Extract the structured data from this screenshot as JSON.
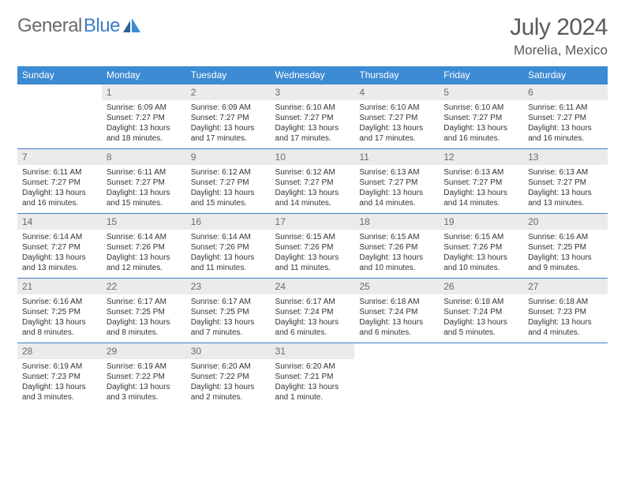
{
  "brand": {
    "part1": "General",
    "part2": "Blue"
  },
  "title": "July 2024",
  "location": "Morelia, Mexico",
  "colors": {
    "header_bg": "#3d8bd4",
    "header_text": "#ffffff",
    "rule": "#3d7cc9",
    "daynum_bg": "#ebebeb",
    "daynum_text": "#6b6b6b",
    "logo_gray": "#6b6b6b",
    "logo_blue": "#3d7cc9",
    "title_color": "#5a5a5a",
    "body_text": "#333333",
    "page_bg": "#ffffff"
  },
  "typography": {
    "title_fontsize": 30,
    "location_fontsize": 17,
    "logo_fontsize": 24,
    "dow_fontsize": 12,
    "daynum_fontsize": 12,
    "body_fontsize": 10
  },
  "days_of_week": [
    "Sunday",
    "Monday",
    "Tuesday",
    "Wednesday",
    "Thursday",
    "Friday",
    "Saturday"
  ],
  "weeks": [
    [
      {
        "num": "",
        "sunrise": "",
        "sunset": "",
        "daylight1": "",
        "daylight2": "",
        "empty": true
      },
      {
        "num": "1",
        "sunrise": "Sunrise: 6:09 AM",
        "sunset": "Sunset: 7:27 PM",
        "daylight1": "Daylight: 13 hours",
        "daylight2": "and 18 minutes."
      },
      {
        "num": "2",
        "sunrise": "Sunrise: 6:09 AM",
        "sunset": "Sunset: 7:27 PM",
        "daylight1": "Daylight: 13 hours",
        "daylight2": "and 17 minutes."
      },
      {
        "num": "3",
        "sunrise": "Sunrise: 6:10 AM",
        "sunset": "Sunset: 7:27 PM",
        "daylight1": "Daylight: 13 hours",
        "daylight2": "and 17 minutes."
      },
      {
        "num": "4",
        "sunrise": "Sunrise: 6:10 AM",
        "sunset": "Sunset: 7:27 PM",
        "daylight1": "Daylight: 13 hours",
        "daylight2": "and 17 minutes."
      },
      {
        "num": "5",
        "sunrise": "Sunrise: 6:10 AM",
        "sunset": "Sunset: 7:27 PM",
        "daylight1": "Daylight: 13 hours",
        "daylight2": "and 16 minutes."
      },
      {
        "num": "6",
        "sunrise": "Sunrise: 6:11 AM",
        "sunset": "Sunset: 7:27 PM",
        "daylight1": "Daylight: 13 hours",
        "daylight2": "and 16 minutes."
      }
    ],
    [
      {
        "num": "7",
        "sunrise": "Sunrise: 6:11 AM",
        "sunset": "Sunset: 7:27 PM",
        "daylight1": "Daylight: 13 hours",
        "daylight2": "and 16 minutes."
      },
      {
        "num": "8",
        "sunrise": "Sunrise: 6:11 AM",
        "sunset": "Sunset: 7:27 PM",
        "daylight1": "Daylight: 13 hours",
        "daylight2": "and 15 minutes."
      },
      {
        "num": "9",
        "sunrise": "Sunrise: 6:12 AM",
        "sunset": "Sunset: 7:27 PM",
        "daylight1": "Daylight: 13 hours",
        "daylight2": "and 15 minutes."
      },
      {
        "num": "10",
        "sunrise": "Sunrise: 6:12 AM",
        "sunset": "Sunset: 7:27 PM",
        "daylight1": "Daylight: 13 hours",
        "daylight2": "and 14 minutes."
      },
      {
        "num": "11",
        "sunrise": "Sunrise: 6:13 AM",
        "sunset": "Sunset: 7:27 PM",
        "daylight1": "Daylight: 13 hours",
        "daylight2": "and 14 minutes."
      },
      {
        "num": "12",
        "sunrise": "Sunrise: 6:13 AM",
        "sunset": "Sunset: 7:27 PM",
        "daylight1": "Daylight: 13 hours",
        "daylight2": "and 14 minutes."
      },
      {
        "num": "13",
        "sunrise": "Sunrise: 6:13 AM",
        "sunset": "Sunset: 7:27 PM",
        "daylight1": "Daylight: 13 hours",
        "daylight2": "and 13 minutes."
      }
    ],
    [
      {
        "num": "14",
        "sunrise": "Sunrise: 6:14 AM",
        "sunset": "Sunset: 7:27 PM",
        "daylight1": "Daylight: 13 hours",
        "daylight2": "and 13 minutes."
      },
      {
        "num": "15",
        "sunrise": "Sunrise: 6:14 AM",
        "sunset": "Sunset: 7:26 PM",
        "daylight1": "Daylight: 13 hours",
        "daylight2": "and 12 minutes."
      },
      {
        "num": "16",
        "sunrise": "Sunrise: 6:14 AM",
        "sunset": "Sunset: 7:26 PM",
        "daylight1": "Daylight: 13 hours",
        "daylight2": "and 11 minutes."
      },
      {
        "num": "17",
        "sunrise": "Sunrise: 6:15 AM",
        "sunset": "Sunset: 7:26 PM",
        "daylight1": "Daylight: 13 hours",
        "daylight2": "and 11 minutes."
      },
      {
        "num": "18",
        "sunrise": "Sunrise: 6:15 AM",
        "sunset": "Sunset: 7:26 PM",
        "daylight1": "Daylight: 13 hours",
        "daylight2": "and 10 minutes."
      },
      {
        "num": "19",
        "sunrise": "Sunrise: 6:15 AM",
        "sunset": "Sunset: 7:26 PM",
        "daylight1": "Daylight: 13 hours",
        "daylight2": "and 10 minutes."
      },
      {
        "num": "20",
        "sunrise": "Sunrise: 6:16 AM",
        "sunset": "Sunset: 7:25 PM",
        "daylight1": "Daylight: 13 hours",
        "daylight2": "and 9 minutes."
      }
    ],
    [
      {
        "num": "21",
        "sunrise": "Sunrise: 6:16 AM",
        "sunset": "Sunset: 7:25 PM",
        "daylight1": "Daylight: 13 hours",
        "daylight2": "and 8 minutes."
      },
      {
        "num": "22",
        "sunrise": "Sunrise: 6:17 AM",
        "sunset": "Sunset: 7:25 PM",
        "daylight1": "Daylight: 13 hours",
        "daylight2": "and 8 minutes."
      },
      {
        "num": "23",
        "sunrise": "Sunrise: 6:17 AM",
        "sunset": "Sunset: 7:25 PM",
        "daylight1": "Daylight: 13 hours",
        "daylight2": "and 7 minutes."
      },
      {
        "num": "24",
        "sunrise": "Sunrise: 6:17 AM",
        "sunset": "Sunset: 7:24 PM",
        "daylight1": "Daylight: 13 hours",
        "daylight2": "and 6 minutes."
      },
      {
        "num": "25",
        "sunrise": "Sunrise: 6:18 AM",
        "sunset": "Sunset: 7:24 PM",
        "daylight1": "Daylight: 13 hours",
        "daylight2": "and 6 minutes."
      },
      {
        "num": "26",
        "sunrise": "Sunrise: 6:18 AM",
        "sunset": "Sunset: 7:24 PM",
        "daylight1": "Daylight: 13 hours",
        "daylight2": "and 5 minutes."
      },
      {
        "num": "27",
        "sunrise": "Sunrise: 6:18 AM",
        "sunset": "Sunset: 7:23 PM",
        "daylight1": "Daylight: 13 hours",
        "daylight2": "and 4 minutes."
      }
    ],
    [
      {
        "num": "28",
        "sunrise": "Sunrise: 6:19 AM",
        "sunset": "Sunset: 7:23 PM",
        "daylight1": "Daylight: 13 hours",
        "daylight2": "and 3 minutes."
      },
      {
        "num": "29",
        "sunrise": "Sunrise: 6:19 AM",
        "sunset": "Sunset: 7:22 PM",
        "daylight1": "Daylight: 13 hours",
        "daylight2": "and 3 minutes."
      },
      {
        "num": "30",
        "sunrise": "Sunrise: 6:20 AM",
        "sunset": "Sunset: 7:22 PM",
        "daylight1": "Daylight: 13 hours",
        "daylight2": "and 2 minutes."
      },
      {
        "num": "31",
        "sunrise": "Sunrise: 6:20 AM",
        "sunset": "Sunset: 7:21 PM",
        "daylight1": "Daylight: 13 hours",
        "daylight2": "and 1 minute."
      },
      {
        "num": "",
        "sunrise": "",
        "sunset": "",
        "daylight1": "",
        "daylight2": "",
        "empty": true
      },
      {
        "num": "",
        "sunrise": "",
        "sunset": "",
        "daylight1": "",
        "daylight2": "",
        "empty": true
      },
      {
        "num": "",
        "sunrise": "",
        "sunset": "",
        "daylight1": "",
        "daylight2": "",
        "empty": true
      }
    ]
  ]
}
